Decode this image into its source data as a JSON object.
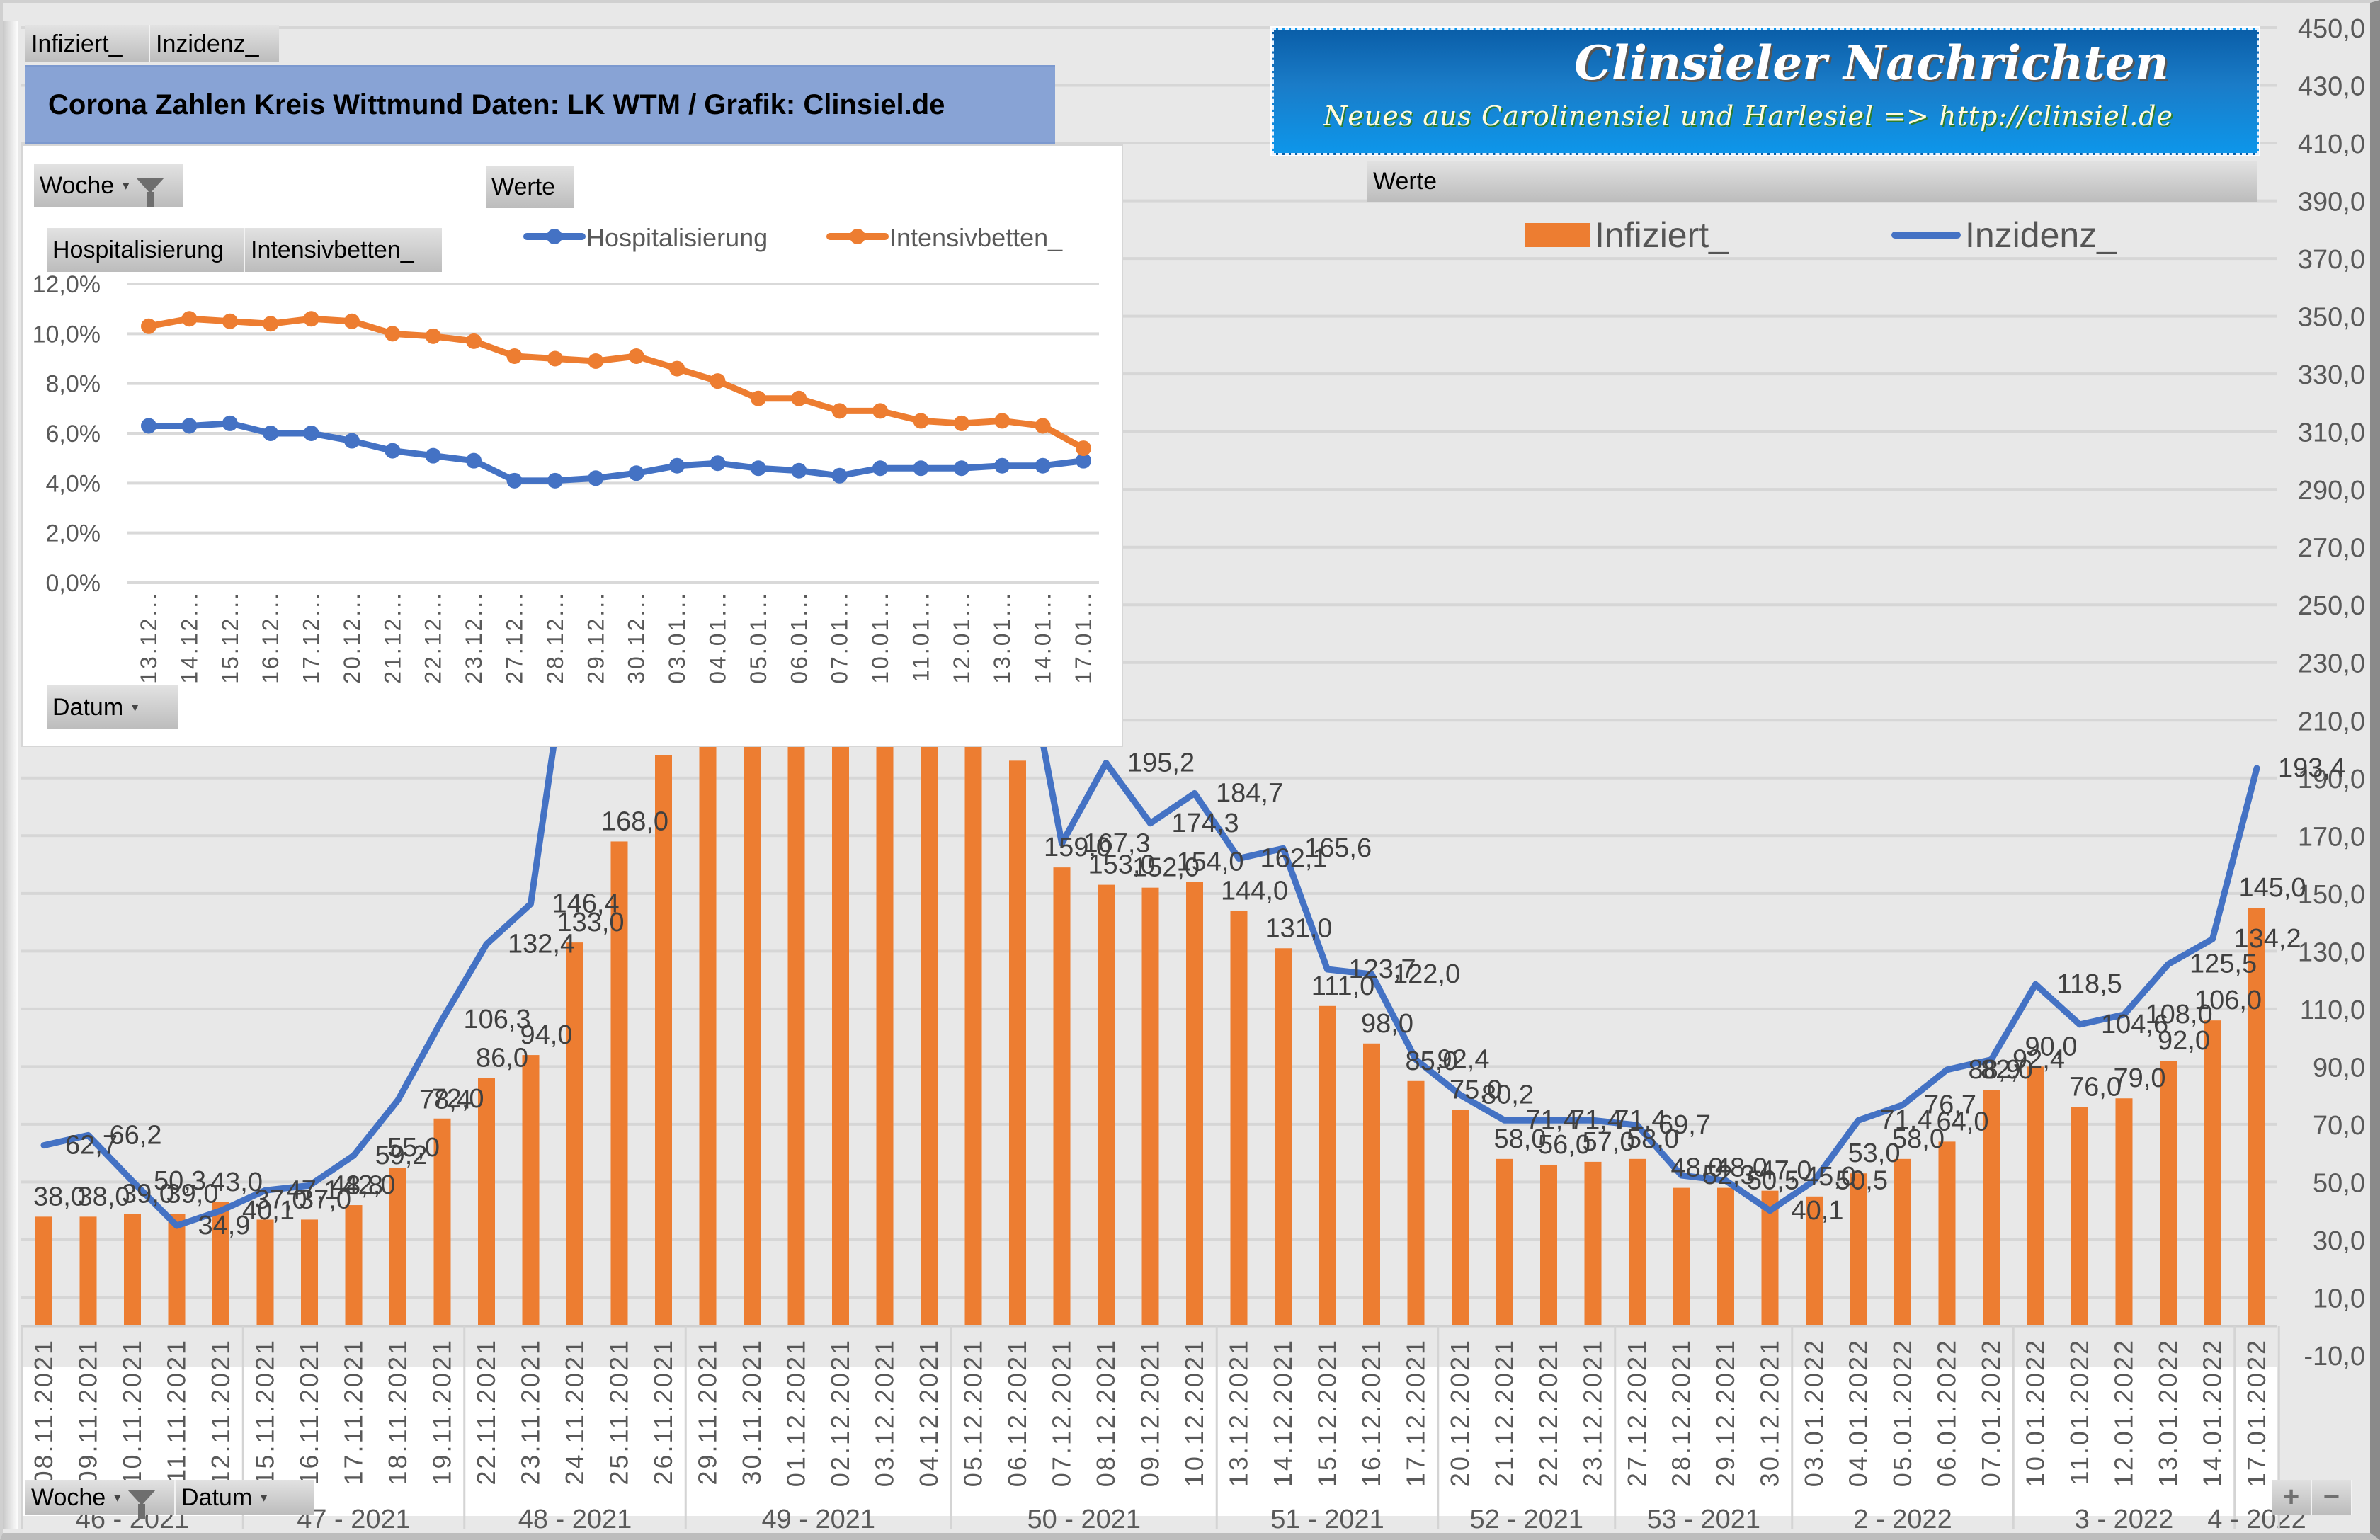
{
  "pivot_value_tabs": [
    "Infiziert_",
    "Inzidenz_"
  ],
  "title": "Corona Zahlen Kreis Wittmund  Daten: LK WTM / Grafik: Clinsiel.de",
  "logo": {
    "title": "Clinsieler Nachrichten",
    "subtitle": "Neues aus Carolinensiel und Harlesiel    => http://clinsiel.de"
  },
  "inset_panel": {
    "filter_button": "Woche",
    "values_button": "Werte",
    "series_buttons": [
      "Hospitalisierung",
      "Intensivbetten_"
    ],
    "axis_button": "Datum"
  },
  "main_panel": {
    "values_button": "Werte",
    "bottom_buttons": [
      "Woche",
      "Datum"
    ],
    "zoom_buttons": [
      "+",
      "−"
    ]
  },
  "colors": {
    "infiziert": "#ED7D31",
    "inzidenz": "#4472C4",
    "hospitalisierung": "#4472C4",
    "intensivbetten": "#ED7D31",
    "banner": "#88A3D5"
  },
  "chart_data": [
    {
      "id": "main",
      "type": "bar+line",
      "title": "",
      "legend": [
        "Infiziert_",
        "Inzidenz_"
      ],
      "legend_position": "top-right",
      "ylim": [
        -10,
        450
      ],
      "y_ticks": [
        "450,0",
        "430,0",
        "410,0",
        "390,0",
        "370,0",
        "350,0",
        "330,0",
        "310,0",
        "290,0",
        "270,0",
        "250,0",
        "230,0",
        "210,0",
        "190,0",
        "170,0",
        "150,0",
        "130,0",
        "110,0",
        "90,0",
        "70,0",
        "50,0",
        "30,0",
        "10,0",
        "-10,0"
      ],
      "grid": true,
      "categories": [
        "08.11.2021",
        "09.11.2021",
        "10.11.2021",
        "11.11.2021",
        "12.11.2021",
        "15.11.2021",
        "16.11.2021",
        "17.11.2021",
        "18.11.2021",
        "19.11.2021",
        "22.11.2021",
        "23.11.2021",
        "24.11.2021",
        "25.11.2021",
        "26.11.2021",
        "29.11.2021",
        "30.11.2021",
        "01.12.2021",
        "02.12.2021",
        "03.12.2021",
        "04.12.2021",
        "05.12.2021",
        "06.12.2021",
        "07.12.2021",
        "08.12.2021",
        "09.12.2021",
        "10.12.2021",
        "13.12.2021",
        "14.12.2021",
        "15.12.2021",
        "16.12.2021",
        "17.12.2021",
        "20.12.2021",
        "21.12.2021",
        "22.12.2021",
        "23.12.2021",
        "27.12.2021",
        "28.12.2021",
        "29.12.2021",
        "30.12.2021",
        "03.01.2022",
        "04.01.2022",
        "05.01.2022",
        "06.01.2022",
        "07.01.2022",
        "10.01.2022",
        "11.01.2022",
        "12.01.2022",
        "13.01.2022",
        "14.01.2022",
        "17.01.2022"
      ],
      "week_groups": [
        {
          "label": "46 - 2021",
          "count": 5
        },
        {
          "label": "47 - 2021",
          "count": 5
        },
        {
          "label": "48 - 2021",
          "count": 5
        },
        {
          "label": "49 - 2021",
          "count": 6
        },
        {
          "label": "50 - 2021",
          "count": 6
        },
        {
          "label": "51 - 2021",
          "count": 5
        },
        {
          "label": "52 - 2021",
          "count": 4
        },
        {
          "label": "53 - 2021",
          "count": 4
        },
        {
          "label": "2 - 2022",
          "count": 5
        },
        {
          "label": "3 - 2022",
          "count": 5
        },
        {
          "label": "4 - 2022",
          "count": 1
        }
      ],
      "series": [
        {
          "name": "Infiziert_",
          "type": "bar",
          "values": [
            38,
            38,
            39,
            39,
            43,
            37,
            37,
            42,
            55,
            72,
            86,
            94,
            133,
            168,
            198,
            null,
            null,
            null,
            null,
            null,
            null,
            null,
            196,
            159,
            153,
            152,
            154,
            144,
            131,
            111,
            98,
            85,
            75,
            58,
            56,
            57,
            58,
            48,
            48,
            47,
            45,
            53,
            58,
            64,
            82,
            90,
            76,
            79,
            92,
            106,
            145
          ],
          "labels": [
            "38,0",
            "38,0",
            "39,0",
            "39,0",
            "43,0",
            "37,0",
            "37,0",
            "42,0",
            "55,0",
            "72,0",
            "86,0",
            "94,0",
            "133,0",
            "168,0",
            "",
            "",
            "",
            "",
            "",
            "",
            "",
            "",
            "",
            "159,0",
            "153,0",
            "152,0",
            "154,0",
            "144,0",
            "131,0",
            "111,0",
            "98,0",
            "85,0",
            "75,0",
            "58,0",
            "56,0",
            "57,0",
            "58,0",
            "48,0",
            "48,0",
            "47,0",
            "45,0",
            "53,0",
            "58,0",
            "64,0",
            "82,0",
            "90,0",
            "76,0",
            "79,0",
            "92,0",
            "106,0",
            "145,0"
          ]
        },
        {
          "name": "Inzidenz_",
          "type": "line",
          "values": [
            62.7,
            66.2,
            50.3,
            34.9,
            40.1,
            47.1,
            48.8,
            59.2,
            78.4,
            106.3,
            132.4,
            146.4,
            null,
            null,
            null,
            null,
            null,
            null,
            null,
            null,
            null,
            null,
            null,
            167.3,
            195.2,
            174.3,
            184.7,
            162.1,
            165.6,
            123.7,
            122.0,
            92.4,
            80.2,
            71.4,
            71.4,
            71.4,
            69.7,
            52.3,
            50.5,
            40.1,
            50.5,
            71.4,
            76.7,
            88.9,
            92.4,
            118.5,
            104.6,
            108.0,
            125.5,
            134.2,
            193.4
          ],
          "labels": [
            "62,7",
            "66,2",
            "50,3",
            "34,9",
            "40,1",
            "47,1",
            "48,8",
            "59,2",
            "78,4",
            "106,3",
            "132,4",
            "146,4",
            "",
            "",
            "",
            "",
            "",
            "",
            "",
            "",
            "",
            "",
            "",
            "167,3",
            "195,2",
            "174,3",
            "184,7",
            "162,1",
            "165,6",
            "123,7",
            "122,0",
            "92,4",
            "80,2",
            "71,4",
            "71,4",
            "71,4",
            "69,7",
            "52,3",
            "50,5",
            "40,1",
            "50,5",
            "71,4",
            "76,7",
            "88,9",
            "92,4",
            "118,5",
            "104,6",
            "108,0",
            "125,5",
            "134,2",
            "193,4"
          ]
        }
      ]
    },
    {
      "id": "inset",
      "type": "line",
      "title": "",
      "legend": [
        "Hospitalisierung",
        "Intensivbetten_"
      ],
      "legend_position": "top",
      "ylim": [
        0,
        12
      ],
      "y_ticks": [
        "12,0%",
        "10,0%",
        "8,0%",
        "6,0%",
        "4,0%",
        "2,0%",
        "0,0%"
      ],
      "grid": true,
      "categories": [
        "13.12...",
        "14.12...",
        "15.12...",
        "16.12...",
        "17.12...",
        "20.12...",
        "21.12...",
        "22.12...",
        "23.12...",
        "27.12...",
        "28.12...",
        "29.12...",
        "30.12...",
        "03.01...",
        "04.01...",
        "05.01...",
        "06.01...",
        "07.01...",
        "10.01...",
        "11.01...",
        "12.01...",
        "13.01...",
        "14.01...",
        "17.01..."
      ],
      "series": [
        {
          "name": "Hospitalisierung",
          "unit": "%",
          "values": [
            6.3,
            6.3,
            6.4,
            6.0,
            6.0,
            5.7,
            5.3,
            5.1,
            4.9,
            4.1,
            4.1,
            4.2,
            4.4,
            4.7,
            4.8,
            4.6,
            4.5,
            4.3,
            4.6,
            4.6,
            4.6,
            4.7,
            4.7,
            4.9
          ]
        },
        {
          "name": "Intensivbetten_",
          "unit": "%",
          "values": [
            10.3,
            10.6,
            10.5,
            10.4,
            10.6,
            10.5,
            10.0,
            9.9,
            9.7,
            9.1,
            9.0,
            8.9,
            9.1,
            8.6,
            8.1,
            7.4,
            7.4,
            6.9,
            6.9,
            6.5,
            6.4,
            6.5,
            6.3,
            5.4
          ]
        }
      ]
    }
  ]
}
